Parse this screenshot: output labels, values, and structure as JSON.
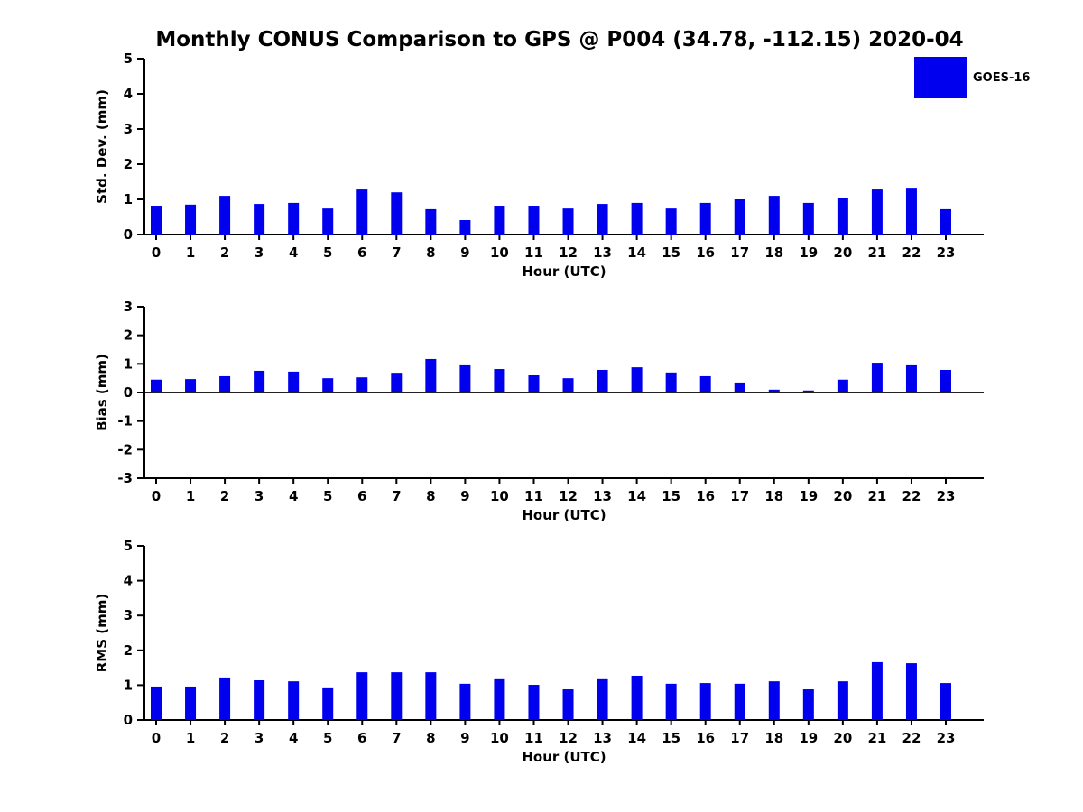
{
  "title": "Monthly CONUS Comparison to GPS @ P004 (34.78, -112.15) 2020-04",
  "legend": {
    "label": "GOES-16",
    "color": "#0000ee",
    "position": "upper right"
  },
  "chart_data": [
    {
      "type": "bar",
      "series_name": "GOES-16",
      "xlabel": "Hour (UTC)",
      "ylabel": "Std. Dev. (mm)",
      "ylim": [
        0,
        5
      ],
      "yticks": [
        0,
        1,
        2,
        3,
        4,
        5
      ],
      "grid": false,
      "categories": [
        "0",
        "1",
        "2",
        "3",
        "4",
        "5",
        "6",
        "7",
        "8",
        "9",
        "10",
        "11",
        "12",
        "13",
        "14",
        "15",
        "16",
        "17",
        "18",
        "19",
        "20",
        "21",
        "22",
        "23"
      ],
      "values": [
        0.82,
        0.85,
        1.1,
        0.87,
        0.9,
        0.74,
        1.28,
        1.2,
        0.72,
        0.41,
        0.82,
        0.82,
        0.74,
        0.87,
        0.9,
        0.74,
        0.9,
        1.0,
        1.1,
        0.9,
        1.05,
        1.28,
        1.33,
        0.72
      ]
    },
    {
      "type": "bar",
      "series_name": "GOES-16",
      "xlabel": "Hour (UTC)",
      "ylabel": "Bias (mm)",
      "ylim": [
        -3,
        3
      ],
      "yticks": [
        -3,
        -2,
        -1,
        0,
        1,
        2,
        3
      ],
      "grid": false,
      "categories": [
        "0",
        "1",
        "2",
        "3",
        "4",
        "5",
        "6",
        "7",
        "8",
        "9",
        "10",
        "11",
        "12",
        "13",
        "14",
        "15",
        "16",
        "17",
        "18",
        "19",
        "20",
        "21",
        "22",
        "23"
      ],
      "values": [
        0.45,
        0.47,
        0.57,
        0.76,
        0.73,
        0.5,
        0.53,
        0.69,
        1.17,
        0.95,
        0.82,
        0.6,
        0.5,
        0.79,
        0.88,
        0.7,
        0.57,
        0.35,
        0.1,
        0.07,
        0.45,
        1.04,
        0.95,
        0.79
      ]
    },
    {
      "type": "bar",
      "series_name": "GOES-16",
      "xlabel": "Hour (UTC)",
      "ylabel": "RMS (mm)",
      "ylim": [
        0,
        5
      ],
      "yticks": [
        0,
        1,
        2,
        3,
        4,
        5
      ],
      "grid": false,
      "categories": [
        "0",
        "1",
        "2",
        "3",
        "4",
        "5",
        "6",
        "7",
        "8",
        "9",
        "10",
        "11",
        "12",
        "13",
        "14",
        "15",
        "16",
        "17",
        "18",
        "19",
        "20",
        "21",
        "22",
        "23"
      ],
      "values": [
        0.96,
        0.96,
        1.22,
        1.14,
        1.11,
        0.91,
        1.37,
        1.37,
        1.37,
        1.04,
        1.17,
        1.01,
        0.88,
        1.17,
        1.27,
        1.04,
        1.06,
        1.04,
        1.11,
        0.88,
        1.11,
        1.66,
        1.63,
        1.06
      ]
    }
  ]
}
